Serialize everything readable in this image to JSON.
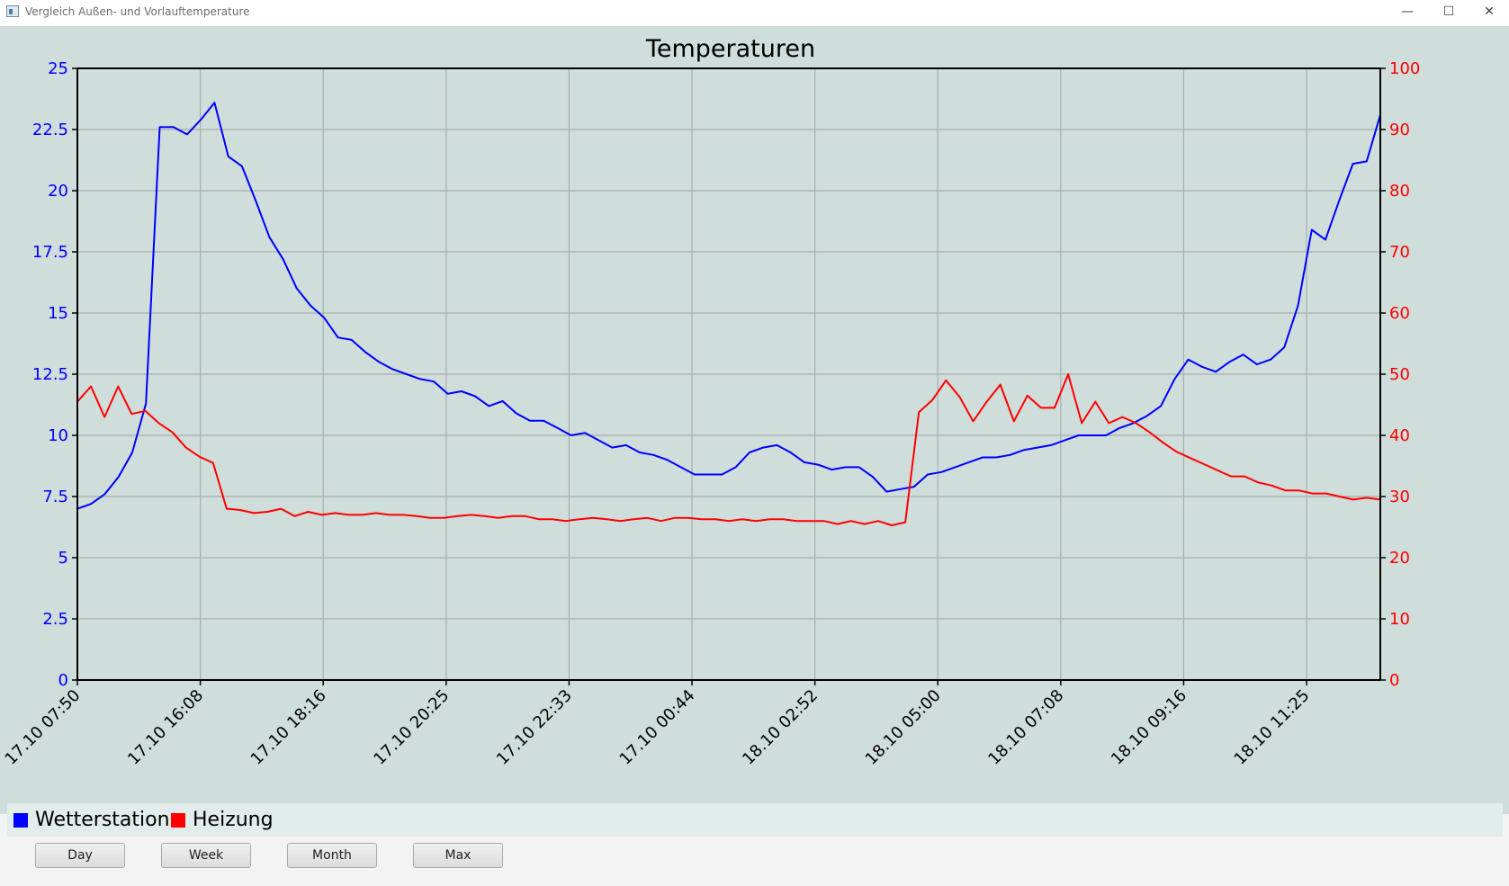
{
  "window": {
    "title": "Vergleich Außen- und Vorlauftemperature",
    "controls": {
      "minimize": "—",
      "maximize": "☐",
      "close": "✕"
    }
  },
  "buttons": {
    "day": "Day",
    "week": "Week",
    "month": "Month",
    "max": "Max"
  },
  "chart_data": {
    "type": "line",
    "title": "Temperaturen",
    "grid": true,
    "legend_position": "bottom",
    "y_left": {
      "min": 0,
      "max": 25,
      "ticks": [
        "0",
        "2.5",
        "5",
        "7.5",
        "10",
        "12.5",
        "15",
        "17.5",
        "20",
        "22.5",
        "25"
      ],
      "color": "#0000ff"
    },
    "y_right": {
      "min": 0,
      "max": 100,
      "ticks": [
        "0",
        "10",
        "20",
        "30",
        "40",
        "50",
        "60",
        "70",
        "80",
        "90",
        "100"
      ],
      "color": "#ff0000"
    },
    "x_ticks": [
      "17.10 07:50",
      "17.10 16:08",
      "17.10 18:16",
      "17.10 20:25",
      "17.10 22:33",
      "17.10 00:44",
      "18.10 02:52",
      "18.10 05:00",
      "18.10 07:08",
      "18.10 09:16",
      "18.10 11:25"
    ],
    "x_positions": 10.6,
    "series": [
      {
        "name": "Wetterstation",
        "axis": "left",
        "color": "#0000ff",
        "values": [
          7.0,
          7.2,
          7.6,
          8.3,
          9.3,
          11.3,
          22.6,
          22.6,
          22.3,
          22.9,
          23.6,
          21.4,
          21.0,
          19.6,
          18.1,
          17.2,
          16.0,
          15.3,
          14.8,
          14.0,
          13.9,
          13.4,
          13.0,
          12.7,
          12.5,
          12.3,
          12.2,
          11.7,
          11.8,
          11.6,
          11.2,
          11.4,
          10.9,
          10.6,
          10.6,
          10.3,
          10.0,
          10.1,
          9.8,
          9.5,
          9.6,
          9.3,
          9.2,
          9.0,
          8.7,
          8.4,
          8.4,
          8.4,
          8.7,
          9.3,
          9.5,
          9.6,
          9.3,
          8.9,
          8.8,
          8.6,
          8.7,
          8.7,
          8.3,
          7.7,
          7.8,
          7.9,
          8.4,
          8.5,
          8.7,
          8.9,
          9.1,
          9.1,
          9.2,
          9.4,
          9.5,
          9.6,
          9.8,
          10.0,
          10.0,
          10.0,
          10.3,
          10.5,
          10.8,
          11.2,
          12.3,
          13.1,
          12.8,
          12.6,
          13.0,
          13.3,
          12.9,
          13.1,
          13.6,
          15.3,
          18.4,
          18.0,
          19.6,
          21.1,
          21.2,
          23.1
        ]
      },
      {
        "name": "Heizung",
        "axis": "right",
        "color": "#ff0000",
        "values": [
          45.5,
          48,
          43,
          48,
          43.5,
          44,
          42,
          40.5,
          38,
          36.5,
          35.5,
          28,
          27.8,
          27.3,
          27.5,
          28,
          26.8,
          27.5,
          27,
          27.3,
          27,
          27,
          27.3,
          27,
          27,
          26.8,
          26.5,
          26.5,
          26.8,
          27,
          26.8,
          26.5,
          26.8,
          26.8,
          26.3,
          26.3,
          26,
          26.3,
          26.5,
          26.3,
          26,
          26.3,
          26.5,
          26,
          26.5,
          26.5,
          26.3,
          26.3,
          26,
          26.3,
          26,
          26.3,
          26.3,
          26,
          26,
          26,
          25.5,
          26,
          25.5,
          26,
          25.3,
          25.8,
          43.8,
          45.8,
          49,
          46.3,
          42.3,
          45.5,
          48.3,
          42.3,
          46.5,
          44.5,
          44.5,
          50,
          42,
          45.5,
          42,
          43,
          42,
          40.5,
          38.8,
          37.3,
          36.3,
          35.3,
          34.3,
          33.3,
          33.3,
          32.3,
          31.8,
          31,
          31,
          30.5,
          30.5,
          30,
          29.5,
          29.8,
          29.5
        ]
      }
    ]
  }
}
